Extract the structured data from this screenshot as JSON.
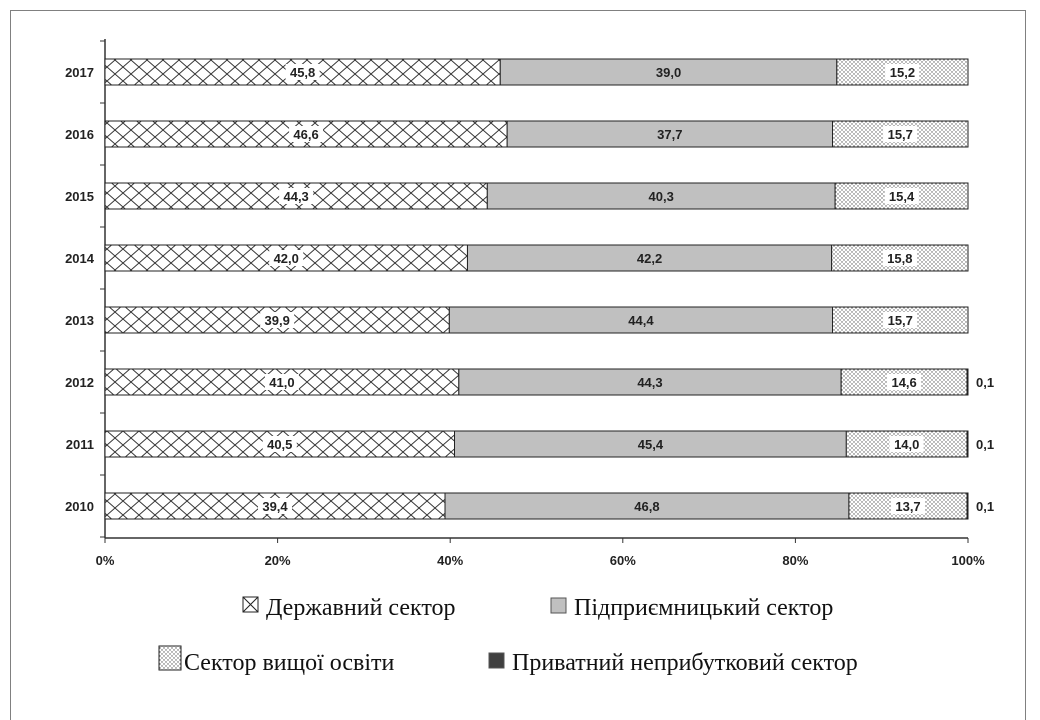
{
  "chart_data": {
    "type": "bar",
    "stacked": true,
    "orientation": "horizontal",
    "normalized_percent": true,
    "categories": [
      "2017",
      "2016",
      "2015",
      "2014",
      "2013",
      "2012",
      "2011",
      "2010"
    ],
    "series": [
      {
        "name": "Державний сектор",
        "values": [
          45.8,
          46.6,
          44.3,
          42.0,
          39.9,
          41.0,
          40.5,
          39.4
        ],
        "labels": [
          "45,8",
          "46,6",
          "44,3",
          "42,0",
          "39,9",
          "41,0",
          "40,5",
          "39,4"
        ],
        "pattern": "crosshatch"
      },
      {
        "name": "Підприємницький сектор",
        "values": [
          39.0,
          37.7,
          40.3,
          42.2,
          44.4,
          44.3,
          45.4,
          46.8
        ],
        "labels": [
          "39,0",
          "37,7",
          "40,3",
          "42,2",
          "44,4",
          "44,3",
          "45,4",
          "46,8"
        ],
        "pattern": "solid-gray",
        "color": "#c0c0c0"
      },
      {
        "name": "Сектор вищої освіти",
        "values": [
          15.2,
          15.7,
          15.4,
          15.8,
          15.7,
          14.6,
          14.0,
          13.7
        ],
        "labels": [
          "15,2",
          "15,7",
          "15,4",
          "15,8",
          "15,7",
          "14,6",
          "14,0",
          "13,7"
        ],
        "pattern": "dotted"
      },
      {
        "name": "Приватний неприбутковий сектор",
        "values": [
          0,
          0,
          0,
          0,
          0,
          0.1,
          0.1,
          0.1
        ],
        "labels": [
          "",
          "",
          "",
          "",
          "",
          "0,1",
          "0,1",
          "0,1"
        ],
        "pattern": "solid-dark",
        "color": "#404040"
      }
    ],
    "x_ticks": [
      "0%",
      "20%",
      "40%",
      "60%",
      "80%",
      "100%"
    ],
    "xlim": [
      0,
      100
    ],
    "grid": false,
    "legend_position": "bottom"
  }
}
